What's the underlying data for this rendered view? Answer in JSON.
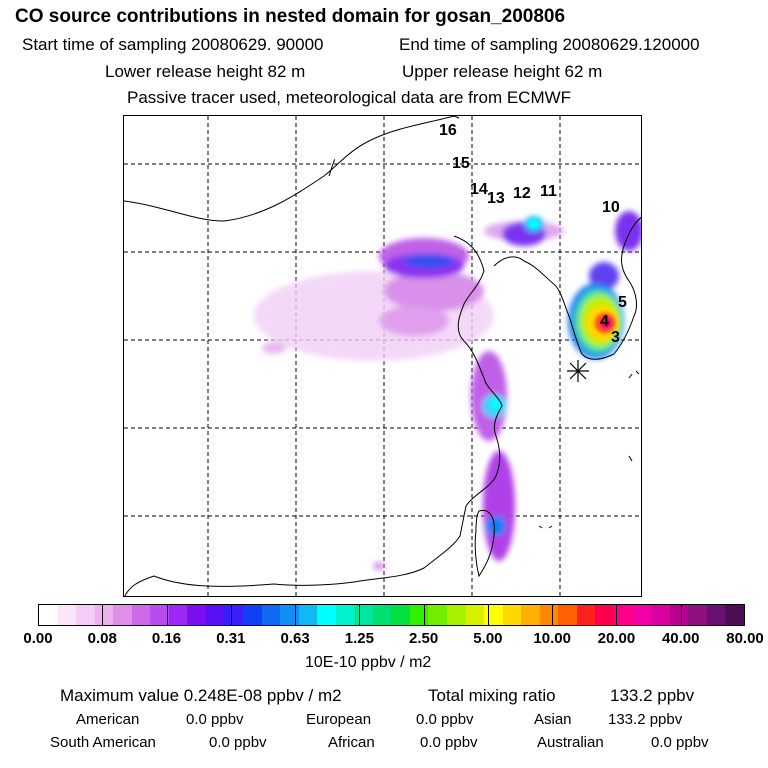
{
  "header": {
    "title": "CO  source contributions in nested domain for gosan_200806",
    "start_label": "Start time of sampling 20080629. 90000",
    "end_label": "End time of sampling 20080629.120000",
    "lower_label": "Lower release height   82 m",
    "upper_label": "Upper release height   62 m",
    "note": "Passive tracer used, meteorological data are from ECMWF"
  },
  "map": {
    "labels": [
      "16",
      "15",
      "14",
      "13",
      "12",
      "11",
      "10",
      "5",
      "4",
      "3"
    ],
    "receptor": "gosan"
  },
  "colorbar": {
    "ticks": [
      "0.00",
      "0.08",
      "0.16",
      "0.31",
      "0.63",
      "1.25",
      "2.50",
      "5.00",
      "10.00",
      "20.00",
      "40.00",
      "80.00"
    ],
    "units": "10E-10 ppbv / m2",
    "colors": [
      "#ffffff",
      "#fbe5fb",
      "#f5ccf5",
      "#eeb0ee",
      "#e08fe8",
      "#cc6ae8",
      "#b84cf0",
      "#9c28f5",
      "#7a10f0",
      "#5a10f5",
      "#3a20f8",
      "#1040f5",
      "#1068f5",
      "#1090f5",
      "#10b8f5",
      "#00ffff",
      "#00f0d0",
      "#00e8a0",
      "#00e070",
      "#00e040",
      "#30f000",
      "#70f000",
      "#a8f000",
      "#d8f000",
      "#ffff00",
      "#ffd800",
      "#ffb000",
      "#ff8800",
      "#ff6000",
      "#ff2020",
      "#ff0050",
      "#ff0088",
      "#f000a8",
      "#d800a0",
      "#b80090",
      "#901080",
      "#6a1070",
      "#4a0f55"
    ]
  },
  "stats": {
    "max_label": "Maximum value  0.248E-08 ppbv / m2",
    "total_label": "Total mixing ratio",
    "total_value": "133.2 ppbv",
    "american_label": "American",
    "american_value": "0.0 ppbv",
    "european_label": "European",
    "european_value": "0.0 ppbv",
    "asian_label": "Asian",
    "asian_value": "133.2 ppbv",
    "south_american_label": "South American",
    "south_american_value": "0.0 ppbv",
    "african_label": "African",
    "african_value": "0.0 ppbv",
    "australian_label": "Australian",
    "australian_value": "0.0 ppbv"
  }
}
